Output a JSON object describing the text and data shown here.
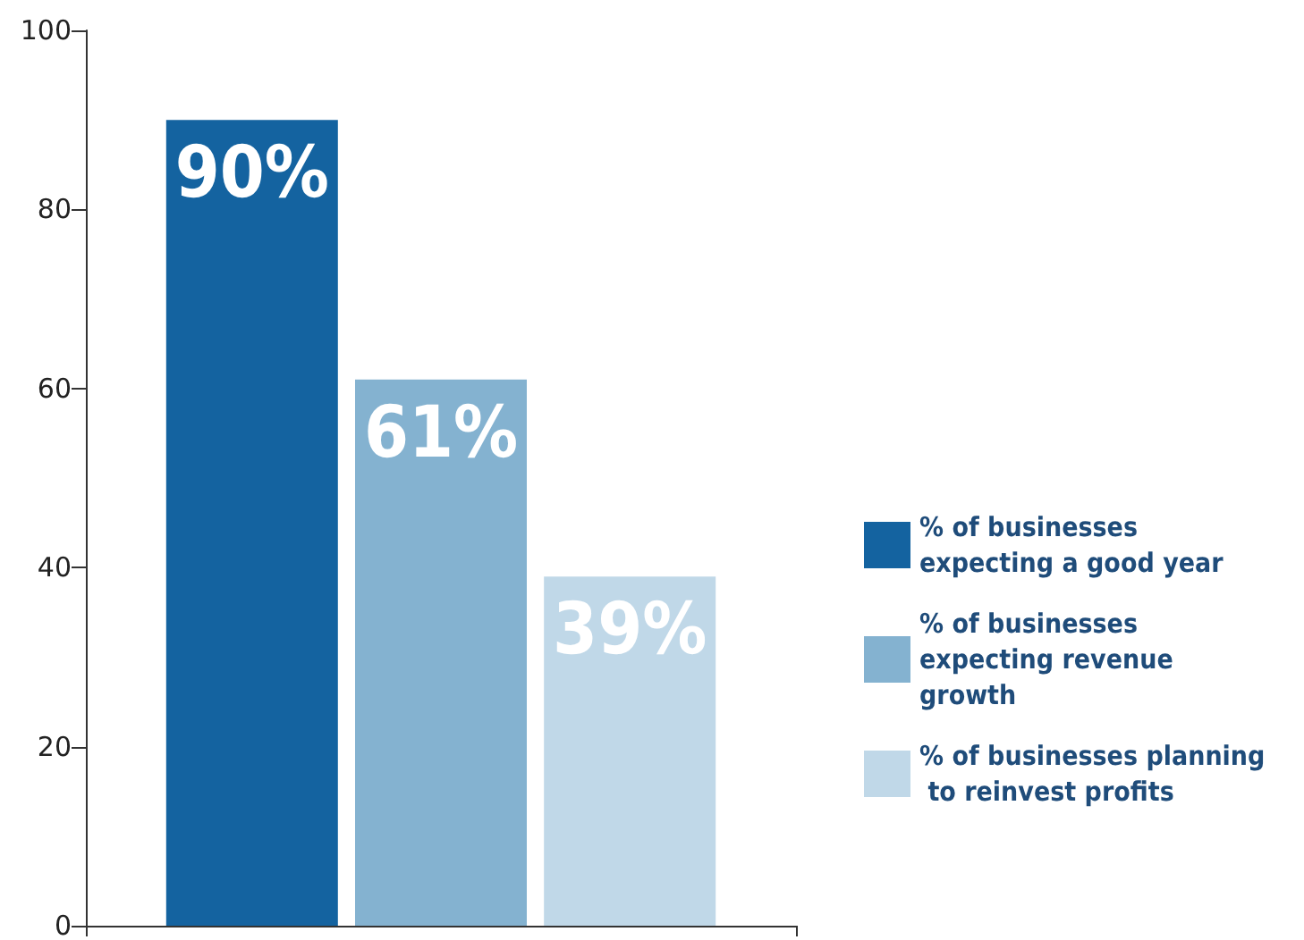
{
  "chart_data": {
    "type": "bar",
    "categories": [
      null
    ],
    "series": [
      {
        "name": "% of businesses expecting a good year",
        "color": "#1463a0",
        "values": [
          90
        ],
        "value_labels": [
          "90%"
        ]
      },
      {
        "name": "% of businesses expecting revenue growth",
        "color": "#84b2d0",
        "values": [
          61
        ],
        "value_labels": [
          "61%"
        ]
      },
      {
        "name": "% of businesses planning to reinvest profits",
        "color": "#c0d8e8",
        "values": [
          39
        ],
        "value_labels": [
          "39%"
        ]
      }
    ],
    "ylim": [
      0,
      100
    ],
    "yticks": [
      0,
      20,
      40,
      60,
      80,
      100
    ],
    "grid": false,
    "legend": "right"
  }
}
